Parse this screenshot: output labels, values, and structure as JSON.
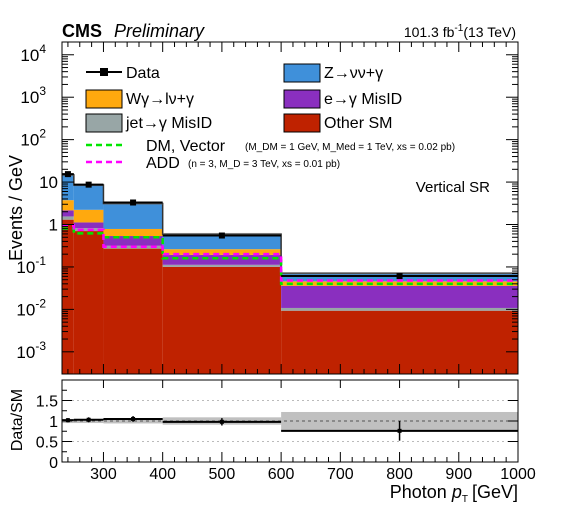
{
  "header": {
    "experiment": "CMS",
    "status": "Preliminary",
    "lumi_value": "101.3 fb",
    "lumi_exp": "-1",
    "energy": "(13 TeV)"
  },
  "region_label": "Vertical SR",
  "chart_data": [
    {
      "type": "bar",
      "stacked": true,
      "ylabel": "Events / GeV",
      "yscale": "log",
      "ylim": [
        0.0003,
        20000
      ],
      "xlim": [
        230,
        1000
      ],
      "bin_edges": [
        230,
        250,
        300,
        400,
        600,
        1000
      ],
      "y_ticks": [
        {
          "value": 0.001,
          "base": "10",
          "exp": "-3"
        },
        {
          "value": 0.01,
          "base": "10",
          "exp": "-2"
        },
        {
          "value": 0.1,
          "base": "10",
          "exp": "-1"
        },
        {
          "value": 1,
          "base": "1",
          "exp": ""
        },
        {
          "value": 10,
          "base": "10",
          "exp": ""
        },
        {
          "value": 100,
          "base": "10",
          "exp": "2"
        },
        {
          "value": 1000,
          "base": "10",
          "exp": "3"
        },
        {
          "value": 10000,
          "base": "10",
          "exp": "4"
        }
      ],
      "series": [
        {
          "name": "Other SM",
          "color": "#bf2200",
          "values": [
            1.3,
            0.7,
            0.27,
            0.1,
            0.009
          ]
        },
        {
          "name": "jet→γ MisID",
          "color": "#98a6a6",
          "values": [
            0.25,
            0.12,
            0.045,
            0.012,
            0.0015
          ]
        },
        {
          "name": "e→γ MisID",
          "color": "#8a2fbf",
          "values": [
            0.6,
            0.3,
            0.22,
            0.08,
            0.025
          ]
        },
        {
          "name": "Wγ→lν+γ",
          "color": "#ffa90e",
          "values": [
            1.6,
            1.1,
            0.25,
            0.07,
            0.01
          ]
        },
        {
          "name": "Z→νν+γ",
          "color": "#3f90da",
          "values": [
            11.0,
            6.3,
            2.35,
            0.33,
            0.025
          ]
        }
      ],
      "data": {
        "name": "Data",
        "x": [
          240,
          275,
          350,
          500,
          800
        ],
        "values": [
          15.4,
          8.7,
          3.3,
          0.55,
          0.061
        ]
      },
      "signals": [
        {
          "name": "DM, Vector",
          "params": "(M_DM = 1 GeV, M_Med = 1 TeV, xs = 0.02 pb)",
          "color": "#00e600",
          "values": [
            0.8,
            0.62,
            0.5,
            0.16,
            0.04
          ]
        },
        {
          "name": "ADD",
          "params": "(n = 3, M_D = 3 TeV, xs = 0.01 pb)",
          "color": "#ff00ff",
          "values": [
            0.95,
            0.75,
            0.3,
            0.2,
            0.048
          ]
        }
      ]
    },
    {
      "type": "scatter",
      "ylabel": "Data/SM",
      "ylim": [
        0,
        2
      ],
      "xlim": [
        230,
        1000
      ],
      "xlabel": "Photon",
      "xlabel_math": "p",
      "xlabel_sub": "T",
      "xlabel_unit": "[GeV]",
      "x_ticks": [
        "300",
        "400",
        "500",
        "600",
        "700",
        "800",
        "900",
        "1000"
      ],
      "y_ticks": [
        "0",
        "0.5",
        "1",
        "1.5"
      ],
      "bin_edges": [
        230,
        250,
        300,
        400,
        600,
        1000
      ],
      "ratio": [
        1.02,
        1.03,
        1.05,
        0.98,
        0.76
      ],
      "ratio_err": [
        0.05,
        0.06,
        0.07,
        0.09,
        0.24
      ],
      "unc_band": [
        0.05,
        0.05,
        0.06,
        0.09,
        0.22
      ]
    }
  ]
}
